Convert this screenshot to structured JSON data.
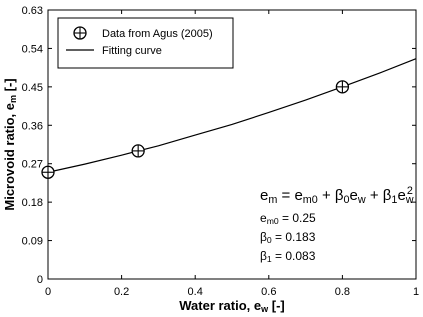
{
  "chart_data": {
    "type": "scatter",
    "x_label": {
      "text": "Water ratio, e",
      "sub": "w",
      "after": " [-]"
    },
    "y_label": {
      "text": "Microvoid ratio, e",
      "sub": "m",
      "after": " [-]"
    },
    "xlim": [
      0,
      1
    ],
    "xticks": [
      0,
      0.2,
      0.4,
      0.6,
      0.8,
      1
    ],
    "ylim": [
      0,
      0.63
    ],
    "yticks": [
      0,
      0.09,
      0.18,
      0.27,
      0.36,
      0.45,
      0.54,
      0.63
    ],
    "legend": "top-left",
    "series": [
      {
        "name": "Data from Agus (2005)",
        "type": "scatter",
        "color": "#000000",
        "x": [
          0,
          0.245,
          0.8
        ],
        "values": [
          0.25,
          0.3,
          0.45
        ]
      },
      {
        "name": "Fitting curve",
        "type": "line",
        "color": "#000000",
        "x": [
          0,
          0.1,
          0.2,
          0.3,
          0.4,
          0.5,
          0.6,
          0.7,
          0.8,
          0.9,
          1
        ],
        "values": [
          0.25,
          0.269,
          0.29,
          0.312,
          0.337,
          0.362,
          0.39,
          0.419,
          0.45,
          0.482,
          0.516
        ]
      }
    ],
    "annotations": [
      [
        {
          "text": "e",
          "sub": "m"
        },
        {
          "text": " = e",
          "sub": "m0"
        },
        {
          "text": " + β",
          "sub": "0"
        },
        {
          "text": "e",
          "sub": "w"
        },
        {
          "text": " + β",
          "sub": "1"
        },
        {
          "text": "e",
          "sub": "w",
          "sup": "2"
        }
      ],
      [
        {
          "text": "e",
          "sub": "m0"
        },
        {
          "text": " = 0.25"
        }
      ],
      [
        {
          "text": "β",
          "sub": "0"
        },
        {
          "text": " = 0.183"
        }
      ],
      [
        {
          "text": "β",
          "sub": "1"
        },
        {
          "text": " = 0.083"
        }
      ]
    ]
  }
}
